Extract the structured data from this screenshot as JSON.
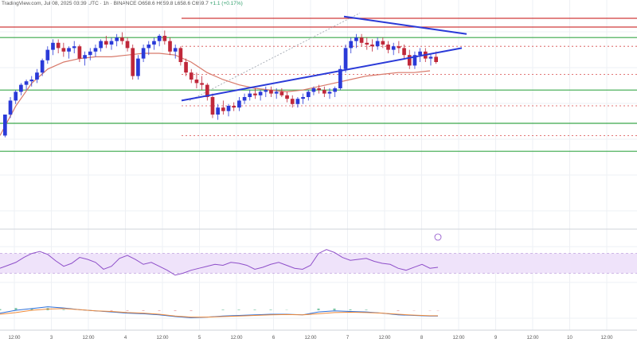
{
  "header": {
    "source": "TradingView.com",
    "date": "Jul 08, 2025 03:39 UTC",
    "interval": "1h",
    "exchange": "BINANCE",
    "ohlc": "O658.6  H659.8  L658.6  C659.7",
    "change": "+1.1 (+0.17%)"
  },
  "chart_data": {
    "type": "line",
    "title": "",
    "x_ticks": [
      "12:00",
      "3",
      "12:00",
      "4",
      "12:00",
      "5",
      "12:00",
      "6",
      "12:00",
      "7",
      "12:00",
      "8",
      "12:00",
      "9",
      "12:00",
      "10",
      "12:00"
    ],
    "price_panel": {
      "ylim": [
        0,
        100
      ],
      "candles": [
        [
          28,
          40,
          27,
          40
        ],
        [
          40,
          50,
          38,
          48
        ],
        [
          48,
          54,
          46,
          53
        ],
        [
          53,
          58,
          51,
          57
        ],
        [
          57,
          60,
          54,
          59
        ],
        [
          59,
          62,
          56,
          60
        ],
        [
          60,
          66,
          58,
          64
        ],
        [
          64,
          72,
          62,
          71
        ],
        [
          71,
          79,
          69,
          77
        ],
        [
          77,
          83,
          74,
          81
        ],
        [
          81,
          83,
          75,
          78
        ],
        [
          78,
          81,
          73,
          76
        ],
        [
          76,
          79,
          72,
          78
        ],
        [
          78,
          82,
          75,
          79
        ],
        [
          79,
          80,
          70,
          72
        ],
        [
          72,
          76,
          68,
          74
        ],
        [
          74,
          78,
          71,
          76
        ],
        [
          76,
          80,
          73,
          78
        ],
        [
          78,
          83,
          76,
          82
        ],
        [
          82,
          85,
          78,
          80
        ],
        [
          80,
          84,
          77,
          82
        ],
        [
          82,
          86,
          79,
          84
        ],
        [
          84,
          87,
          80,
          82
        ],
        [
          82,
          84,
          76,
          78
        ],
        [
          78,
          80,
          60,
          62
        ],
        [
          62,
          74,
          60,
          72
        ],
        [
          72,
          80,
          70,
          78
        ],
        [
          78,
          82,
          74,
          80
        ],
        [
          80,
          84,
          77,
          82
        ],
        [
          82,
          86,
          79,
          85
        ],
        [
          85,
          88,
          80,
          82
        ],
        [
          82,
          84,
          74,
          76
        ],
        [
          76,
          80,
          72,
          78
        ],
        [
          78,
          79,
          68,
          70
        ],
        [
          70,
          72,
          62,
          64
        ],
        [
          64,
          66,
          58,
          60
        ],
        [
          60,
          64,
          55,
          58
        ],
        [
          58,
          62,
          54,
          57
        ],
        [
          57,
          58,
          48,
          50
        ],
        [
          50,
          52,
          38,
          40
        ],
        [
          40,
          46,
          37,
          44
        ],
        [
          44,
          48,
          40,
          42
        ],
        [
          42,
          46,
          39,
          45
        ],
        [
          45,
          47,
          42,
          44
        ],
        [
          44,
          50,
          42,
          48
        ],
        [
          48,
          52,
          46,
          50
        ],
        [
          50,
          54,
          48,
          52
        ],
        [
          52,
          55,
          49,
          51
        ],
        [
          51,
          54,
          48,
          53
        ],
        [
          53,
          56,
          50,
          54
        ],
        [
          54,
          56,
          50,
          52
        ],
        [
          52,
          55,
          49,
          53
        ],
        [
          53,
          55,
          50,
          51
        ],
        [
          51,
          53,
          47,
          49
        ],
        [
          49,
          51,
          44,
          46
        ],
        [
          46,
          50,
          44,
          49
        ],
        [
          49,
          52,
          46,
          50
        ],
        [
          50,
          54,
          48,
          53
        ],
        [
          53,
          56,
          51,
          55
        ],
        [
          55,
          57,
          52,
          54
        ],
        [
          54,
          56,
          50,
          52
        ],
        [
          52,
          55,
          49,
          53
        ],
        [
          53,
          56,
          50,
          55
        ],
        [
          55,
          68,
          54,
          66
        ],
        [
          66,
          80,
          64,
          78
        ],
        [
          78,
          84,
          75,
          82
        ],
        [
          82,
          86,
          78,
          84
        ],
        [
          84,
          86,
          79,
          81
        ],
        [
          81,
          84,
          77,
          80
        ],
        [
          80,
          83,
          76,
          79
        ],
        [
          79,
          84,
          77,
          82
        ],
        [
          82,
          84,
          78,
          80
        ],
        [
          80,
          82,
          75,
          77
        ],
        [
          77,
          81,
          74,
          79
        ],
        [
          79,
          82,
          75,
          78
        ],
        [
          78,
          80,
          72,
          74
        ],
        [
          74,
          77,
          66,
          68
        ],
        [
          68,
          76,
          66,
          74
        ],
        [
          74,
          78,
          70,
          76
        ],
        [
          76,
          78,
          70,
          72
        ],
        [
          72,
          75,
          68,
          73
        ],
        [
          73,
          76,
          69,
          70
        ]
      ],
      "ma": [
        [
          0,
          28
        ],
        [
          20,
          45
        ],
        [
          40,
          58
        ],
        [
          60,
          66
        ],
        [
          80,
          70
        ],
        [
          100,
          72
        ],
        [
          120,
          73
        ],
        [
          140,
          73
        ],
        [
          160,
          74
        ],
        [
          180,
          75
        ],
        [
          200,
          75
        ],
        [
          220,
          74
        ],
        [
          240,
          70
        ],
        [
          260,
          64
        ],
        [
          280,
          60
        ],
        [
          300,
          57
        ],
        [
          320,
          55
        ],
        [
          340,
          54
        ],
        [
          360,
          53
        ],
        [
          380,
          54
        ],
        [
          400,
          56
        ],
        [
          420,
          58
        ],
        [
          440,
          60
        ],
        [
          460,
          62
        ],
        [
          480,
          63
        ],
        [
          500,
          64
        ],
        [
          520,
          64
        ],
        [
          540,
          65
        ]
      ],
      "support_lines": [
        {
          "label": "upper",
          "points": [
            [
              228,
              48
            ],
            [
              580,
              78
            ]
          ],
          "color": "#2a3ad8"
        },
        {
          "label": "lower",
          "points": [
            [
              432,
              96
            ],
            [
              586,
              86
            ]
          ],
          "color": "#2a3ad8"
        }
      ],
      "h_levels_green": [
        84,
        54,
        35,
        19
      ],
      "h_levels_red": [
        90,
        95
      ],
      "h_levels_dashed": [
        79,
        63,
        45,
        28
      ]
    },
    "rsi_panel": {
      "ylim": [
        0,
        100
      ],
      "values": [
        [
          0,
          40
        ],
        [
          10,
          46
        ],
        [
          20,
          52
        ],
        [
          30,
          62
        ],
        [
          40,
          70
        ],
        [
          50,
          74
        ],
        [
          60,
          68
        ],
        [
          70,
          55
        ],
        [
          80,
          44
        ],
        [
          90,
          50
        ],
        [
          100,
          62
        ],
        [
          110,
          58
        ],
        [
          120,
          52
        ],
        [
          130,
          38
        ],
        [
          140,
          44
        ],
        [
          150,
          60
        ],
        [
          160,
          66
        ],
        [
          170,
          58
        ],
        [
          180,
          48
        ],
        [
          190,
          52
        ],
        [
          200,
          44
        ],
        [
          210,
          36
        ],
        [
          220,
          26
        ],
        [
          230,
          30
        ],
        [
          240,
          36
        ],
        [
          250,
          40
        ],
        [
          260,
          44
        ],
        [
          270,
          48
        ],
        [
          280,
          46
        ],
        [
          290,
          52
        ],
        [
          300,
          50
        ],
        [
          310,
          46
        ],
        [
          320,
          38
        ],
        [
          330,
          42
        ],
        [
          340,
          48
        ],
        [
          350,
          52
        ],
        [
          360,
          46
        ],
        [
          370,
          40
        ],
        [
          380,
          38
        ],
        [
          390,
          46
        ],
        [
          400,
          70
        ],
        [
          410,
          78
        ],
        [
          420,
          72
        ],
        [
          430,
          62
        ],
        [
          440,
          56
        ],
        [
          450,
          58
        ],
        [
          460,
          60
        ],
        [
          470,
          54
        ],
        [
          480,
          50
        ],
        [
          490,
          48
        ],
        [
          500,
          40
        ],
        [
          510,
          36
        ],
        [
          520,
          42
        ],
        [
          530,
          48
        ],
        [
          540,
          40
        ],
        [
          550,
          42
        ]
      ]
    },
    "macd_panel": {
      "macd": [
        [
          0,
          40
        ],
        [
          20,
          50
        ],
        [
          40,
          56
        ],
        [
          60,
          62
        ],
        [
          80,
          58
        ],
        [
          100,
          52
        ],
        [
          120,
          48
        ],
        [
          140,
          44
        ],
        [
          160,
          40
        ],
        [
          180,
          38
        ],
        [
          200,
          34
        ],
        [
          220,
          28
        ],
        [
          240,
          24
        ],
        [
          260,
          26
        ],
        [
          280,
          30
        ],
        [
          300,
          32
        ],
        [
          320,
          34
        ],
        [
          340,
          36
        ],
        [
          360,
          36
        ],
        [
          380,
          34
        ],
        [
          400,
          44
        ],
        [
          420,
          48
        ],
        [
          440,
          46
        ],
        [
          460,
          44
        ],
        [
          480,
          40
        ],
        [
          500,
          34
        ],
        [
          520,
          32
        ],
        [
          540,
          30
        ],
        [
          550,
          30
        ]
      ],
      "signal": [
        [
          0,
          36
        ],
        [
          20,
          42
        ],
        [
          40,
          50
        ],
        [
          60,
          54
        ],
        [
          80,
          56
        ],
        [
          100,
          52
        ],
        [
          120,
          48
        ],
        [
          140,
          46
        ],
        [
          160,
          42
        ],
        [
          180,
          40
        ],
        [
          200,
          36
        ],
        [
          220,
          30
        ],
        [
          240,
          26
        ],
        [
          260,
          26
        ],
        [
          280,
          28
        ],
        [
          300,
          30
        ],
        [
          320,
          32
        ],
        [
          340,
          34
        ],
        [
          360,
          35
        ],
        [
          380,
          34
        ],
        [
          400,
          38
        ],
        [
          420,
          42
        ],
        [
          440,
          43
        ],
        [
          460,
          42
        ],
        [
          480,
          40
        ],
        [
          500,
          36
        ],
        [
          520,
          33
        ],
        [
          540,
          31
        ],
        [
          550,
          31
        ]
      ]
    }
  },
  "colors": {
    "up": "#2a3ad8",
    "down": "#c0283a",
    "green_level": "#3aa84a",
    "red_level": "#d03a3a",
    "ma": "#d8796a",
    "trend": "#2a3ad8",
    "rsi": "#8e4fc9",
    "rsi_band": "#efe3fa",
    "macd": "#2d6fd8",
    "signal": "#ee8a3a"
  }
}
